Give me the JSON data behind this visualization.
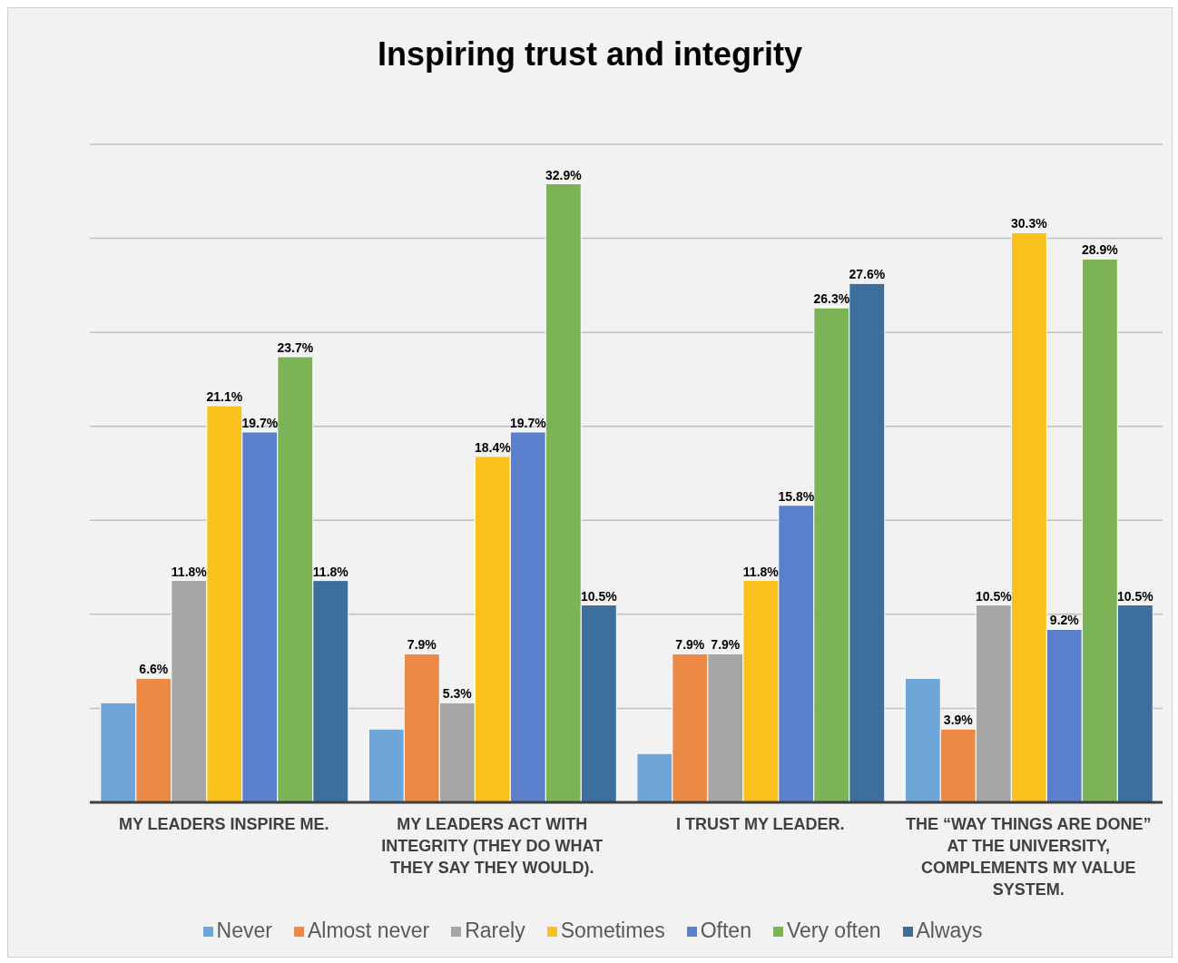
{
  "chart_data": {
    "type": "bar",
    "title": "Inspiring trust and integrity",
    "categories": [
      "MY LEADERS INSPIRE ME.",
      "MY LEADERS ACT WITH INTEGRITY (THEY DO WHAT THEY SAY THEY WOULD).",
      "I TRUST MY LEADER.",
      "THE “WAY THINGS ARE DONE” AT THE UNIVERSITY, COMPLEMENTS MY VALUE SYSTEM."
    ],
    "series": [
      {
        "name": "Never",
        "color": "#6fa6d9",
        "values": [
          5.3,
          3.9,
          2.6,
          6.6
        ],
        "value_labels": [
          null,
          null,
          null,
          null
        ]
      },
      {
        "name": "Almost never",
        "color": "#ec8a45",
        "values": [
          6.6,
          7.9,
          7.9,
          3.9
        ],
        "value_labels": [
          "6.6%",
          "7.9%",
          "7.9%",
          "3.9%"
        ]
      },
      {
        "name": "Rarely",
        "color": "#a6a6a6",
        "values": [
          11.8,
          5.3,
          7.9,
          10.5
        ],
        "value_labels": [
          "11.8%",
          "5.3%",
          "7.9%",
          "10.5%"
        ]
      },
      {
        "name": "Sometimes",
        "color": "#fbc21d",
        "values": [
          21.1,
          18.4,
          11.8,
          30.3
        ],
        "value_labels": [
          "21.1%",
          "18.4%",
          "11.8%",
          "30.3%"
        ]
      },
      {
        "name": "Often",
        "color": "#5a80cc",
        "values": [
          19.7,
          19.7,
          15.8,
          9.2
        ],
        "value_labels": [
          "19.7%",
          "19.7%",
          "15.8%",
          "9.2%"
        ]
      },
      {
        "name": "Very often",
        "color": "#7db357",
        "values": [
          23.7,
          32.9,
          26.3,
          28.9
        ],
        "value_labels": [
          "23.7%",
          "32.9%",
          "26.3%",
          "28.9%"
        ]
      },
      {
        "name": "Always",
        "color": "#3c6f9c",
        "values": [
          11.8,
          10.5,
          27.6,
          10.5
        ],
        "value_labels": [
          "11.8%",
          "10.5%",
          "27.6%",
          "10.5%"
        ]
      }
    ],
    "ylim": [
      0,
      35
    ],
    "yticks": [
      {
        "value": 0,
        "label": null
      },
      {
        "value": 5,
        "label": null
      },
      {
        "value": 10,
        "label": null
      },
      {
        "value": 15,
        "label": null
      },
      {
        "value": 20,
        "label": null
      },
      {
        "value": 25,
        "label": null
      },
      {
        "value": 30,
        "label": null
      },
      {
        "value": 35,
        "label": null
      }
    ],
    "grid": "y",
    "legend": "bottom"
  }
}
